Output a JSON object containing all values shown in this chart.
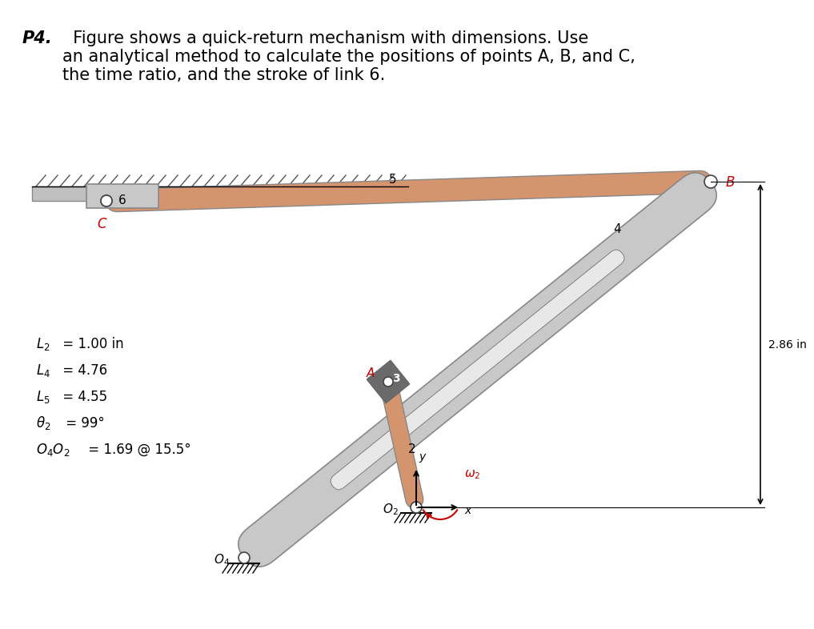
{
  "title_bold": "P4.",
  "title_text": "  Figure shows a quick-return mechanism with dimensions. Use\nan analytical method to calculate the positions of points A, B, and C,\nthe time ratio, and the stroke of link 6.",
  "params": [
    "L₂ = 1.00 in",
    "L₄ = 4.76",
    "L₅ = 4.55",
    "θ₂ = 99°",
    "O₄O₂ = 1.69 @ 15.5°"
  ],
  "bg_color": "#ffffff",
  "link_color": "#d4956e",
  "slider_color": "#7a7a7a",
  "ground_color": "#c8c8c8",
  "frame_color": "#c8c8c8",
  "stroke_label": "2.86 in",
  "text_color": "#000000",
  "red_color": "#cc0000"
}
